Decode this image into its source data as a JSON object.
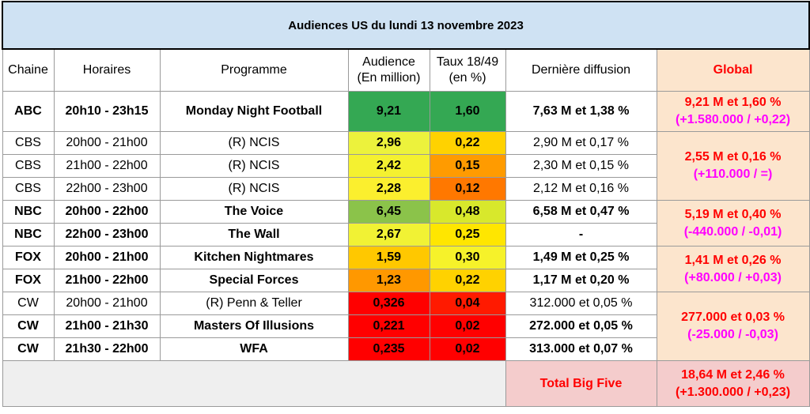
{
  "title": "Audiences US du lundi 13 novembre 2023",
  "headers": {
    "chaine": "Chaine",
    "horaires": "Horaires",
    "programme": "Programme",
    "audience_l1": "Audience",
    "audience_l2": "(En million)",
    "taux_l1": "Taux 18/49",
    "taux_l2": "(en %)",
    "derniere": "Dernière diffusion",
    "global": "Global"
  },
  "rows": [
    {
      "chaine": "ABC",
      "horaires": "20h10 - 23h15",
      "programme": "Monday Night Football",
      "audience": "9,21",
      "taux": "1,60",
      "derniere": "7,63 M et 1,38 %",
      "bold": true,
      "aud_color": "#34a853",
      "taux_color": "#34a853"
    },
    {
      "chaine": "CBS",
      "horaires": "20h00 - 21h00",
      "programme": "(R) NCIS",
      "audience": "2,96",
      "taux": "0,22",
      "derniere": "2,90 M et 0,17 %",
      "bold": false,
      "aud_color": "#ecf23c",
      "taux_color": "#ffd200"
    },
    {
      "chaine": "CBS",
      "horaires": "21h00 - 22h00",
      "programme": "(R) NCIS",
      "audience": "2,42",
      "taux": "0,15",
      "derniere": "2,30 M et 0,15 %",
      "bold": false,
      "aud_color": "#f4f130",
      "taux_color": "#ff9b00"
    },
    {
      "chaine": "CBS",
      "horaires": "22h00 - 23h00",
      "programme": "(R) NCIS",
      "audience": "2,28",
      "taux": "0,12",
      "derniere": "2,12 M et 0,16 %",
      "bold": false,
      "aud_color": "#fbef2e",
      "taux_color": "#ff7800"
    },
    {
      "chaine": "NBC",
      "horaires": "20h00 - 22h00",
      "programme": "The Voice",
      "audience": "6,45",
      "taux": "0,48",
      "derniere": "6,58 M et 0,47 %",
      "bold": true,
      "aud_color": "#8bc34a",
      "taux_color": "#d8e82c"
    },
    {
      "chaine": "NBC",
      "horaires": "22h00 - 23h00",
      "programme": "The Wall",
      "audience": "2,67",
      "taux": "0,25",
      "derniere": "-",
      "bold": true,
      "aud_color": "#f1f234",
      "taux_color": "#ffe600"
    },
    {
      "chaine": "FOX",
      "horaires": "20h00 - 21h00",
      "programme": "Kitchen Nightmares",
      "audience": "1,59",
      "taux": "0,30",
      "derniere": "1,49 M et 0,25 %",
      "bold": true,
      "aud_color": "#ffc800",
      "taux_color": "#f6f22a"
    },
    {
      "chaine": "FOX",
      "horaires": "21h00 - 22h00",
      "programme": "Special Forces",
      "audience": "1,23",
      "taux": "0,22",
      "derniere": "1,17 M et 0,20 %",
      "bold": true,
      "aud_color": "#ff9800",
      "taux_color": "#ffd200"
    },
    {
      "chaine": "CW",
      "horaires": "20h00 - 21h00",
      "programme": "(R) Penn & Teller",
      "audience": "0,326",
      "taux": "0,04",
      "derniere": "312.000 et 0,05 %",
      "bold": false,
      "aud_color": "#ff0000",
      "taux_color": "#ff1a00"
    },
    {
      "chaine": "CW",
      "horaires": "21h00 - 21h30",
      "programme": "Masters Of Illusions",
      "audience": "0,221",
      "taux": "0,02",
      "derniere": "272.000 et 0,05 %",
      "bold": true,
      "aud_color": "#ff0000",
      "taux_color": "#ff0000"
    },
    {
      "chaine": "CW",
      "horaires": "21h30 - 22h00",
      "programme": "WFA",
      "audience": "0,235",
      "taux": "0,02",
      "derniere": "313.000 et 0,07 %",
      "bold": true,
      "aud_color": "#ff0000",
      "taux_color": "#ff0000"
    }
  ],
  "global": {
    "abc": {
      "main": "9,21 M et 1,60 %",
      "sub": "(+1.580.000 / +0,22)"
    },
    "cbs": {
      "main": "2,55 M et 0,16 %",
      "sub": "(+110.000 / =)"
    },
    "nbc": {
      "main": "5,19 M et 0,40 %",
      "sub": "(-440.000 / -0,01)"
    },
    "fox": {
      "main": "1,41 M et 0,26 %",
      "sub": "(+80.000 / +0,03)"
    },
    "cw": {
      "main": "277.000 et 0,03 %",
      "sub": "(-25.000 / -0,03)"
    }
  },
  "total": {
    "label": "Total Big Five",
    "main": "18,64 M et 2,46 %",
    "sub": "(+1.300.000 / +0,23)"
  }
}
